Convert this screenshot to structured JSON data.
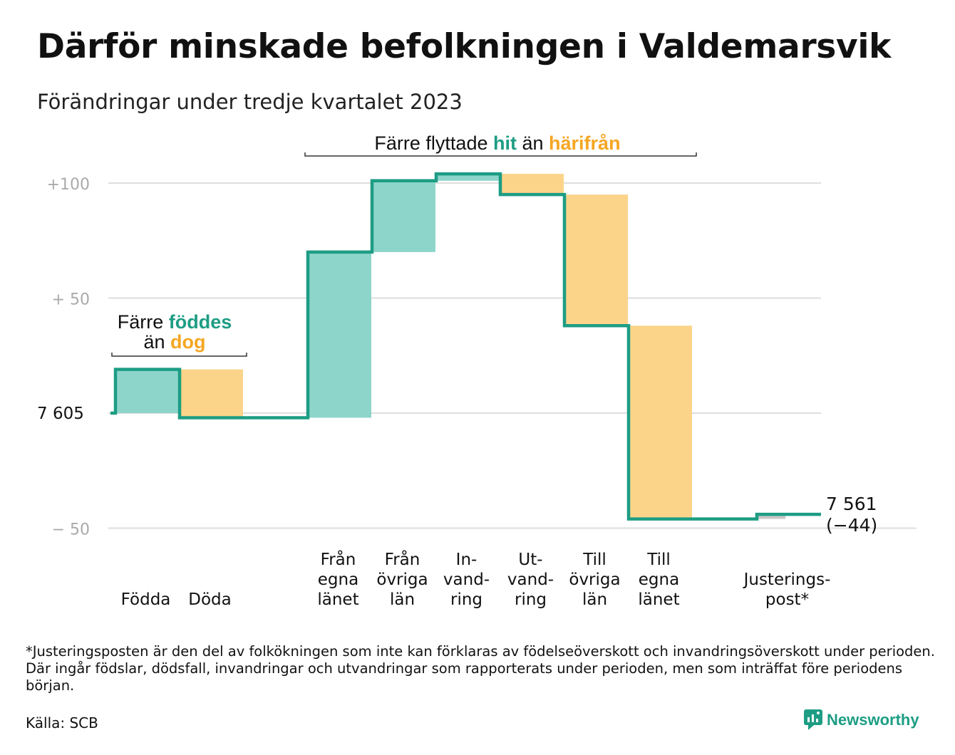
{
  "title": "Därför minskade befolkningen i Valdemarsvik",
  "subtitle": "Förändringar under tredje kvartalet 2023",
  "chart_data": {
    "type": "waterfall",
    "start_value": 7605,
    "start_label": "7  605",
    "y_ticks": [
      {
        "value": 100,
        "label": "+100"
      },
      {
        "value": 50,
        "label": "+  50"
      },
      {
        "value": -50,
        "label": "−  50"
      }
    ],
    "ylim": [
      -52,
      110
    ],
    "grid": true,
    "steps": [
      {
        "label": [
          "Födda"
        ],
        "change": 19,
        "kind": "in"
      },
      {
        "label": [
          "Döda"
        ],
        "change": -21,
        "kind": "out"
      },
      {
        "label": [
          ""
        ],
        "change": 0,
        "kind": "none"
      },
      {
        "label": [
          "Från",
          "egna",
          "länet"
        ],
        "change": 72,
        "kind": "in"
      },
      {
        "label": [
          "Från",
          "övriga",
          "län"
        ],
        "change": 31,
        "kind": "in"
      },
      {
        "label": [
          "In-",
          "vand-",
          "ring"
        ],
        "change": 3,
        "kind": "in"
      },
      {
        "label": [
          "Ut-",
          "vand-",
          "ring"
        ],
        "change": -9,
        "kind": "out"
      },
      {
        "label": [
          "Till",
          "övriga",
          "län"
        ],
        "change": -57,
        "kind": "out"
      },
      {
        "label": [
          "Till",
          "egna",
          "länet"
        ],
        "change": -84,
        "kind": "out"
      },
      {
        "label": [
          ""
        ],
        "change": 0,
        "kind": "none"
      },
      {
        "label": [
          "Justerings-",
          "post*"
        ],
        "change": 2,
        "kind": "adjust"
      }
    ],
    "end_value_label": "7 561",
    "end_change_label": "(−44)",
    "annotations": {
      "births": {
        "prefix": "Färre",
        "green": "föddes",
        "line2_prefix": "än",
        "orange": "dog"
      },
      "moves": {
        "prefix": "Färre flyttade",
        "green": "hit",
        "middle": "än",
        "orange": "härifrån"
      }
    },
    "colors": {
      "line": "#1d9d84",
      "in": "#8dd5cb",
      "out": "#fbd48a",
      "adjust": "#c8c8c8",
      "green_text": "#1d9d84",
      "orange_text": "#f5a623",
      "grid": "#dedede",
      "tick": "#aaaaaa"
    }
  },
  "footnote": "*Justeringsposten är den del av folkökningen som inte kan förklaras av födelseöverskott och invandringsöverskott under perioden. Där ingår födslar, dödsfall, invandringar och utvandringar som rapporterats under perioden, men som inträffat före periodens början.",
  "source": "Källa: SCB",
  "brand": {
    "name": "Newsworthy",
    "icon": "newsworthy-logo-icon"
  }
}
